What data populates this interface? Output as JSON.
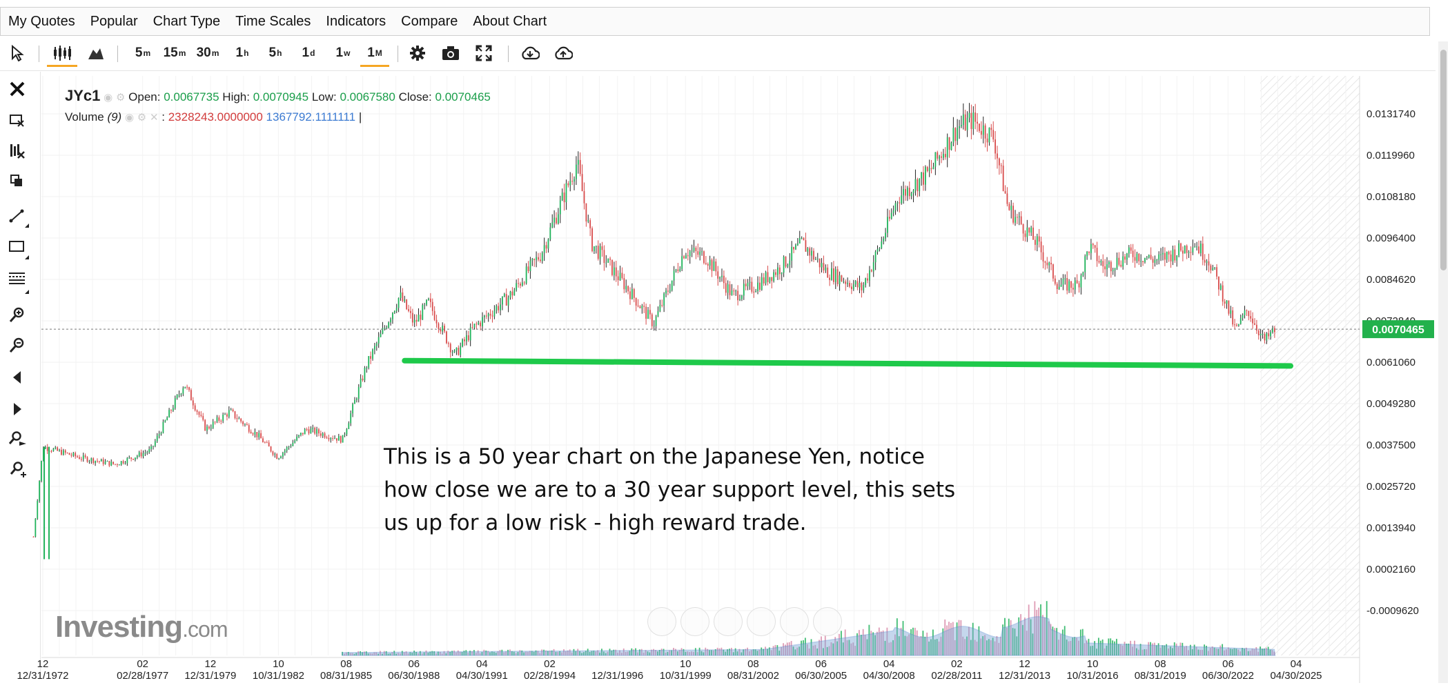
{
  "menu": [
    "My Quotes",
    "Popular",
    "Chart Type",
    "Time Scales",
    "Indicators",
    "Compare",
    "About Chart"
  ],
  "toolbar": {
    "intervals": [
      {
        "label": "5",
        "sup": "m"
      },
      {
        "label": "15",
        "sup": "m"
      },
      {
        "label": "30",
        "sup": "m"
      },
      {
        "label": "1",
        "sup": "h"
      },
      {
        "label": "5",
        "sup": "h"
      },
      {
        "label": "1",
        "sup": "d"
      },
      {
        "label": "1",
        "sup": "w"
      },
      {
        "label": "1",
        "sup": "M",
        "active": true
      }
    ]
  },
  "legend": {
    "symbol": "JYc1",
    "open_label": "Open:",
    "open": "0.0067735",
    "high_label": "High:",
    "high": "0.0070945",
    "low_label": "Low:",
    "low": "0.0067580",
    "close_label": "Close:",
    "close": "0.0070465",
    "volume_label": "Volume",
    "volume_period": "(9)",
    "volume_value": "2328243.0000000",
    "volume_avg": "1367792.1111111",
    "volume_tail": "|"
  },
  "annotation": "This is a 50 year chart on the Japanese Yen, notice how close we are to a 30 year support level, this sets us up for a low risk - high reward trade.",
  "logo": {
    "main": "Investing",
    "suffix": ".com"
  },
  "colors": {
    "up": "#1fb25a",
    "down": "#d84b4b",
    "support": "#1ec94a",
    "price_tag": "#22b14c",
    "volume": "#7fa8d8"
  },
  "chart_data": {
    "type": "candlestick",
    "y_axis_ticks": [
      "0.0131740",
      "0.0119960",
      "0.0108180",
      "0.0096400",
      "0.0084620",
      "0.0072840",
      "0.0061060",
      "0.0049280",
      "0.0037500",
      "0.0025720",
      "0.0013940",
      "0.0002160",
      "-0.0009620"
    ],
    "y_tick_values": [
      0.013174,
      0.011996,
      0.010818,
      0.00964,
      0.008462,
      0.007284,
      0.006106,
      0.004928,
      0.00375,
      0.002572,
      0.001394,
      0.000216,
      -0.000962
    ],
    "x_axis_labels": [
      {
        "top": "12",
        "bottom": "12/31/1972",
        "year": 1972.99
      },
      {
        "top": "02",
        "bottom": "02/28/1977",
        "year": 1977.16
      },
      {
        "top": "12",
        "bottom": "12/31/1979",
        "year": 1979.99
      },
      {
        "top": "10",
        "bottom": "10/31/1982",
        "year": 1982.83
      },
      {
        "top": "08",
        "bottom": "08/31/1985",
        "year": 1985.66
      },
      {
        "top": "06",
        "bottom": "06/30/1988",
        "year": 1988.49
      },
      {
        "top": "04",
        "bottom": "04/30/1991",
        "year": 1991.33
      },
      {
        "top": "02",
        "bottom": "02/28/1994",
        "year": 1994.16
      },
      {
        "top": "",
        "bottom": "12/31/1996",
        "year": 1996.99
      },
      {
        "top": "10",
        "bottom": "10/31/1999",
        "year": 1999.83
      },
      {
        "top": "08",
        "bottom": "08/31/2002",
        "year": 2002.66
      },
      {
        "top": "06",
        "bottom": "06/30/2005",
        "year": 2005.49
      },
      {
        "top": "04",
        "bottom": "04/30/2008",
        "year": 2008.33
      },
      {
        "top": "02",
        "bottom": "02/28/2011",
        "year": 2011.16
      },
      {
        "top": "12",
        "bottom": "12/31/2013",
        "year": 2013.99
      },
      {
        "top": "10",
        "bottom": "10/31/2016",
        "year": 2016.83
      },
      {
        "top": "08",
        "bottom": "08/31/2019",
        "year": 2019.66
      },
      {
        "top": "06",
        "bottom": "06/30/2022",
        "year": 2022.49
      },
      {
        "top": "04",
        "bottom": "04/30/2025",
        "year": 2025.33
      }
    ],
    "price_points": [
      [
        1972.5,
        0.0005
      ],
      [
        1973.0,
        0.0037
      ],
      [
        1974.5,
        0.0034
      ],
      [
        1976.0,
        0.0032
      ],
      [
        1977.5,
        0.0036
      ],
      [
        1978.9,
        0.0055
      ],
      [
        1979.8,
        0.0042
      ],
      [
        1980.8,
        0.0047
      ],
      [
        1982.0,
        0.004
      ],
      [
        1982.8,
        0.0034
      ],
      [
        1984.0,
        0.0042
      ],
      [
        1985.5,
        0.0039
      ],
      [
        1986.5,
        0.006
      ],
      [
        1987.9,
        0.008
      ],
      [
        1988.5,
        0.0072
      ],
      [
        1989.1,
        0.0078
      ],
      [
        1990.2,
        0.0063
      ],
      [
        1991.0,
        0.0071
      ],
      [
        1992.5,
        0.008
      ],
      [
        1993.8,
        0.0092
      ],
      [
        1995.3,
        0.0118
      ],
      [
        1995.9,
        0.0095
      ],
      [
        1997.3,
        0.0083
      ],
      [
        1998.5,
        0.0072
      ],
      [
        1999.8,
        0.0093
      ],
      [
        2000.7,
        0.0091
      ],
      [
        2001.8,
        0.008
      ],
      [
        2002.8,
        0.0083
      ],
      [
        2003.8,
        0.0088
      ],
      [
        2004.7,
        0.0095
      ],
      [
        2005.7,
        0.0087
      ],
      [
        2007.2,
        0.0082
      ],
      [
        2008.0,
        0.0095
      ],
      [
        2008.7,
        0.0108
      ],
      [
        2010.0,
        0.0115
      ],
      [
        2011.2,
        0.0128
      ],
      [
        2011.8,
        0.013
      ],
      [
        2012.7,
        0.0125
      ],
      [
        2013.3,
        0.0105
      ],
      [
        2014.5,
        0.0095
      ],
      [
        2015.4,
        0.0083
      ],
      [
        2016.2,
        0.0083
      ],
      [
        2016.7,
        0.0094
      ],
      [
        2017.3,
        0.0088
      ],
      [
        2018.5,
        0.0092
      ],
      [
        2019.5,
        0.009
      ],
      [
        2020.5,
        0.0093
      ],
      [
        2021.1,
        0.0095
      ],
      [
        2021.7,
        0.009
      ],
      [
        2022.4,
        0.0078
      ],
      [
        2022.8,
        0.007
      ],
      [
        2023.3,
        0.0076
      ],
      [
        2024.0,
        0.0067
      ],
      [
        2024.4,
        0.007
      ]
    ],
    "support_line": {
      "from_year": 1988.1,
      "to_year": 2025.1,
      "from_value": 0.00615,
      "to_value": 0.006
    },
    "last_price": "0.0070465",
    "last_price_value": 0.0070465
  }
}
